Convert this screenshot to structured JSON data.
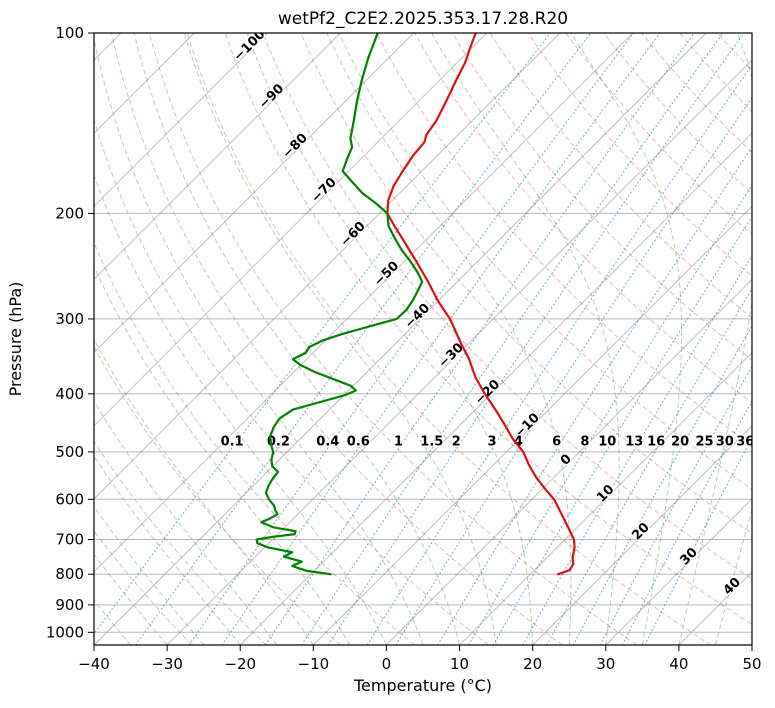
{
  "title": "wetPf2_C2E2.2025.353.17.28.R20",
  "axes": {
    "x_label": "Temperature (°C)",
    "y_label": "Pressure (hPa)",
    "x_ticks": [
      -40,
      -30,
      -20,
      -10,
      0,
      10,
      20,
      30,
      40,
      50
    ],
    "y_ticks": [
      100,
      200,
      300,
      400,
      500,
      600,
      700,
      800,
      900,
      1000
    ],
    "x_range": [
      -40,
      50
    ],
    "pressure_range": [
      100,
      1050
    ]
  },
  "chart_data": {
    "type": "skewt_log_p",
    "x_min": -40,
    "x_max": 50,
    "pressure_top": 100,
    "pressure_bottom": 1050,
    "skew_deg": 45,
    "isotherms": {
      "start": -120,
      "end": 50,
      "step": 10
    },
    "isotherm_labels": [
      -100,
      -90,
      -80,
      -70,
      -60,
      -50,
      -40,
      -30,
      -20,
      -10,
      0,
      10,
      20,
      30,
      40
    ],
    "dry_adiabats": {
      "start": -30,
      "end": 190,
      "step": 10
    },
    "moist_adiabats": {
      "start": -40,
      "end": 45,
      "step": 5
    },
    "mixing_ratios": [
      0.1,
      0.2,
      0.4,
      0.6,
      1,
      1.5,
      2,
      3,
      4,
      6,
      8,
      10,
      13,
      16,
      20,
      25,
      30,
      36
    ],
    "colors": {
      "temperature": "#e01010",
      "dewpoint": "#008000",
      "isotherm": "#8a8a8a",
      "isobar": "#8a8a8a",
      "dry_adiabat": "#cf6054",
      "moist_adiabat": "#4f9a55",
      "mixing_line": "#2f7fb8",
      "label_negative": "#3a7cc4",
      "label_zero": "#7f7f7f",
      "label_positive": "#c44e52"
    },
    "series": [
      {
        "name": "temperature",
        "points": [
          [
            800,
            13.8
          ],
          [
            788,
            14.8
          ],
          [
            770,
            14.5
          ],
          [
            750,
            13.5
          ],
          [
            720,
            12.3
          ],
          [
            700,
            11.2
          ],
          [
            675,
            9.3
          ],
          [
            650,
            7.3
          ],
          [
            625,
            5.2
          ],
          [
            600,
            3.0
          ],
          [
            575,
            0.2
          ],
          [
            550,
            -2.6
          ],
          [
            525,
            -5.2
          ],
          [
            500,
            -7.7
          ],
          [
            475,
            -11.0
          ],
          [
            450,
            -14.0
          ],
          [
            425,
            -17.3
          ],
          [
            400,
            -20.9
          ],
          [
            375,
            -24.5
          ],
          [
            350,
            -27.8
          ],
          [
            330,
            -31.0
          ],
          [
            310,
            -34.2
          ],
          [
            300,
            -35.9
          ],
          [
            280,
            -40.0
          ],
          [
            260,
            -44.0
          ],
          [
            240,
            -48.5
          ],
          [
            220,
            -53.5
          ],
          [
            210,
            -56.2
          ],
          [
            200,
            -58.9
          ],
          [
            190,
            -60.6
          ],
          [
            180,
            -61.8
          ],
          [
            170,
            -62.6
          ],
          [
            160,
            -63.3
          ],
          [
            152,
            -63.6
          ],
          [
            148,
            -64.3
          ],
          [
            140,
            -64.9
          ],
          [
            130,
            -66.2
          ],
          [
            120,
            -67.7
          ],
          [
            112,
            -68.9
          ],
          [
            106,
            -70.2
          ],
          [
            100,
            -71.5
          ]
        ]
      },
      {
        "name": "dewpoint",
        "points": [
          [
            800,
            -17.3
          ],
          [
            790,
            -21.0
          ],
          [
            775,
            -23.7
          ],
          [
            762,
            -23.0
          ],
          [
            748,
            -26.1
          ],
          [
            735,
            -25.6
          ],
          [
            722,
            -29.5
          ],
          [
            710,
            -31.6
          ],
          [
            700,
            -32.2
          ],
          [
            693,
            -30.4
          ],
          [
            686,
            -27.7
          ],
          [
            678,
            -28.0
          ],
          [
            668,
            -31.6
          ],
          [
            655,
            -33.9
          ],
          [
            645,
            -33.2
          ],
          [
            635,
            -32.8
          ],
          [
            625,
            -33.7
          ],
          [
            615,
            -34.4
          ],
          [
            600,
            -36.0
          ],
          [
            585,
            -37.3
          ],
          [
            570,
            -37.9
          ],
          [
            555,
            -38.3
          ],
          [
            540,
            -38.5
          ],
          [
            528,
            -40.1
          ],
          [
            515,
            -41.1
          ],
          [
            500,
            -41.9
          ],
          [
            485,
            -43.3
          ],
          [
            470,
            -44.5
          ],
          [
            455,
            -45.2
          ],
          [
            440,
            -45.6
          ],
          [
            425,
            -45.0
          ],
          [
            412,
            -42.1
          ],
          [
            402,
            -39.8
          ],
          [
            395,
            -39.0
          ],
          [
            388,
            -40.3
          ],
          [
            378,
            -43.6
          ],
          [
            368,
            -47.1
          ],
          [
            358,
            -50.1
          ],
          [
            350,
            -51.9
          ],
          [
            342,
            -51.0
          ],
          [
            334,
            -51.3
          ],
          [
            326,
            -50.4
          ],
          [
            318,
            -48.6
          ],
          [
            310,
            -46.3
          ],
          [
            300,
            -43.2
          ],
          [
            290,
            -43.1
          ],
          [
            280,
            -43.5
          ],
          [
            270,
            -44.1
          ],
          [
            260,
            -44.8
          ],
          [
            250,
            -46.9
          ],
          [
            240,
            -49.3
          ],
          [
            230,
            -52.0
          ],
          [
            220,
            -54.5
          ],
          [
            210,
            -57.0
          ],
          [
            200,
            -58.9
          ],
          [
            193,
            -61.6
          ],
          [
            185,
            -65.1
          ],
          [
            177,
            -68.1
          ],
          [
            170,
            -70.8
          ],
          [
            162,
            -71.9
          ],
          [
            155,
            -72.8
          ],
          [
            150,
            -74.2
          ],
          [
            140,
            -76.2
          ],
          [
            130,
            -78.4
          ],
          [
            120,
            -80.6
          ],
          [
            110,
            -82.8
          ],
          [
            100,
            -84.9
          ]
        ]
      }
    ]
  }
}
